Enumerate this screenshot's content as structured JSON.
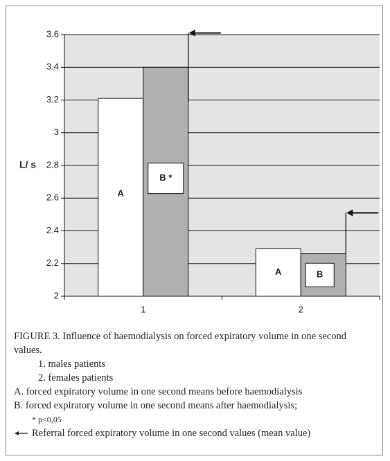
{
  "chart_data": {
    "type": "bar",
    "ylabel": "L/ s",
    "categories": [
      "1",
      "2"
    ],
    "series": [
      {
        "name": "A",
        "color": "#ffffff",
        "values": [
          3.21,
          2.29
        ],
        "labels": [
          "A",
          "A"
        ]
      },
      {
        "name": "B",
        "color": "#b0b0b3",
        "values": [
          3.4,
          2.26
        ],
        "labels": [
          "B *",
          "B"
        ]
      }
    ],
    "referral_values": [
      3.61,
      2.51
    ],
    "ylim": [
      2,
      3.6
    ],
    "yticks": [
      2,
      2.2,
      2.4,
      2.6,
      2.8,
      3,
      3.2,
      3.4,
      3.6
    ],
    "grid": true
  },
  "caption": {
    "title": "FIGURE 3. Influence of haemodialysis on forced expiratory volume in one second values.",
    "groups": [
      "1. males patients",
      "2. females patients"
    ],
    "items": [
      "A. forced expiratory volume in one second means before haemodialysis",
      "B. forced expiratory volume in one second means after haemodialysis;"
    ],
    "note": "* p<0,05",
    "legend": "Referral forced expiratory volume in one second values (mean value)"
  }
}
